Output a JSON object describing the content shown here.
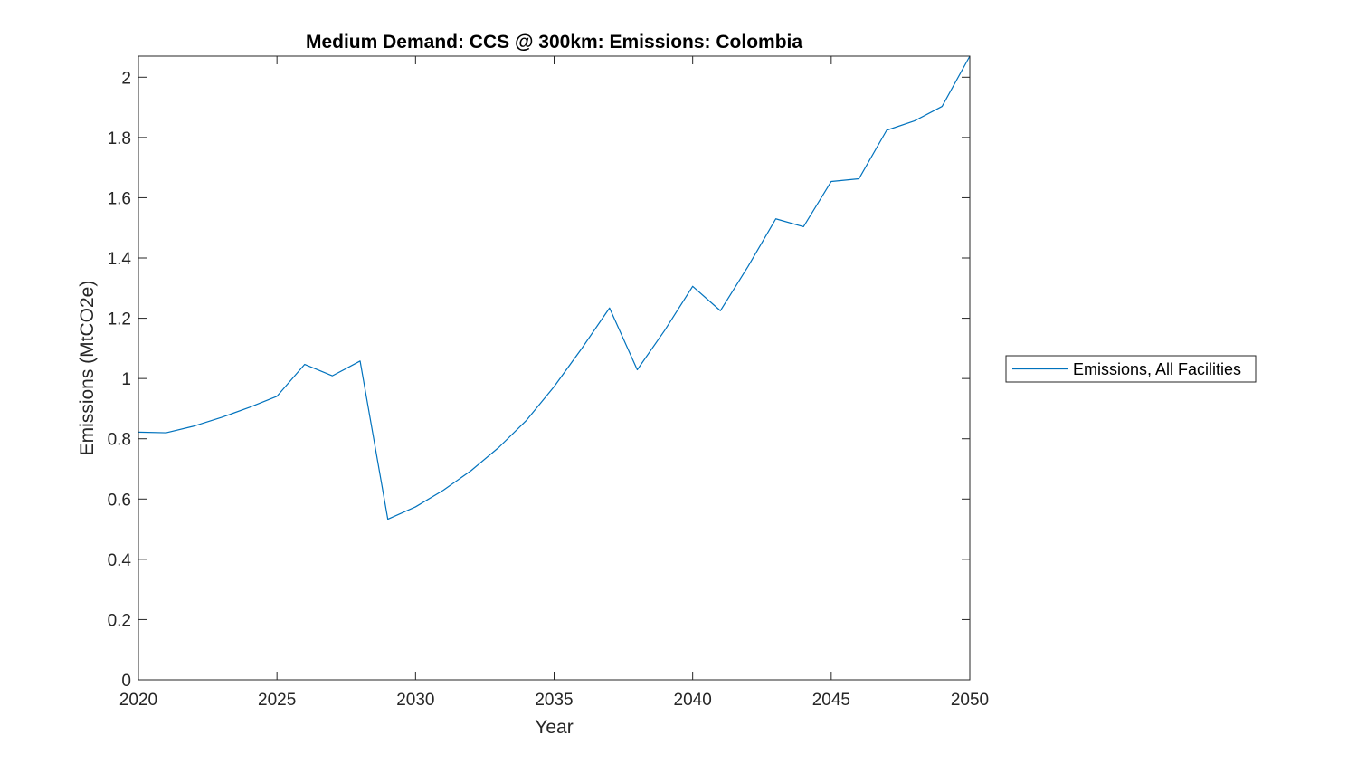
{
  "chart_data": {
    "type": "line",
    "title": "Medium Demand: CCS @ 300km: Emissions: Colombia",
    "xlabel": "Year",
    "ylabel": "Emissions (MtCO2e)",
    "xlim": [
      2020,
      2050
    ],
    "ylim": [
      0,
      2.07
    ],
    "xticks": [
      2020,
      2025,
      2030,
      2035,
      2040,
      2045,
      2050
    ],
    "yticks": [
      0,
      0.2,
      0.4,
      0.6,
      0.8,
      1,
      1.2,
      1.4,
      1.6,
      1.8,
      2
    ],
    "xtick_labels": [
      "2020",
      "2025",
      "2030",
      "2035",
      "2040",
      "2045",
      "2050"
    ],
    "ytick_labels": [
      "0",
      "0.2",
      "0.4",
      "0.6",
      "0.8",
      "1",
      "1.2",
      "1.4",
      "1.6",
      "1.8",
      "2"
    ],
    "grid": false,
    "legend_position": "outside-right",
    "series": [
      {
        "name": "Emissions, All Facilities",
        "color": "#0072BD",
        "x": [
          2020,
          2021,
          2022,
          2023,
          2024,
          2025,
          2026,
          2027,
          2028,
          2029,
          2030,
          2031,
          2032,
          2033,
          2034,
          2035,
          2036,
          2037,
          2038,
          2039,
          2040,
          2041,
          2042,
          2043,
          2044,
          2045,
          2046,
          2047,
          2048,
          2049,
          2050
        ],
        "y": [
          0.822,
          0.82,
          0.842,
          0.871,
          0.904,
          0.941,
          1.047,
          1.009,
          1.058,
          0.533,
          0.574,
          0.629,
          0.694,
          0.771,
          0.861,
          0.973,
          1.1,
          1.234,
          1.029,
          1.161,
          1.306,
          1.225,
          1.372,
          1.53,
          1.504,
          1.654,
          1.663,
          1.824,
          1.855,
          1.903,
          2.07
        ]
      }
    ]
  }
}
